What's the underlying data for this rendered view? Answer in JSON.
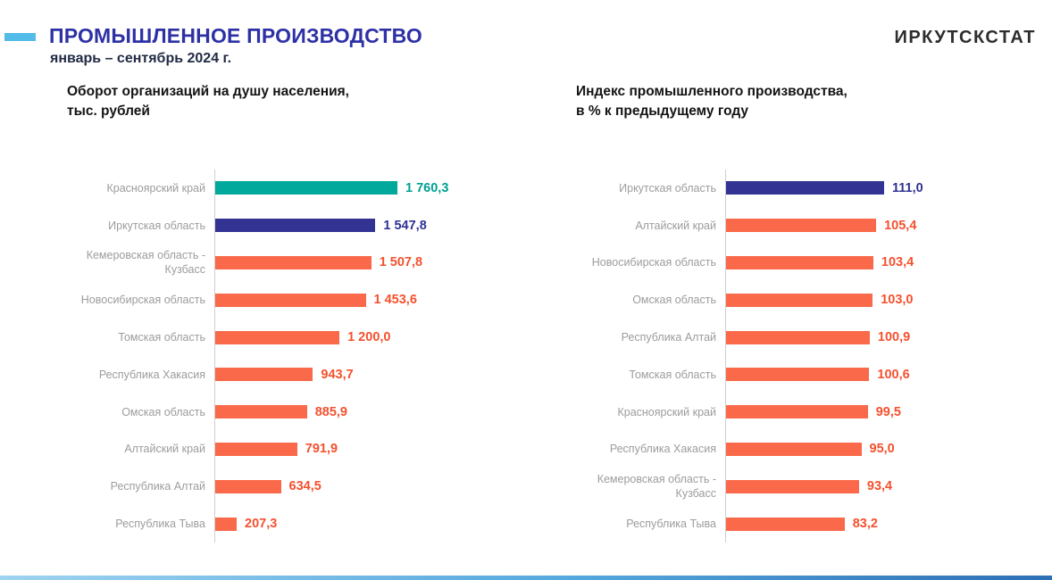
{
  "header": {
    "title": "ПРОМЫШЛЕННОЕ ПРОИЗВОДСТВО",
    "subtitle": "январь – сентябрь 2024 г.",
    "logo": "ИРКУТСКСТАТ"
  },
  "colors": {
    "accent_dash": "#54BCE8",
    "title_blue": "#2E31A5",
    "teal": "#00A99B",
    "navy": "#333394",
    "orange_bar": "#F9694A",
    "orange_text": "#F4512E",
    "label_gray": "#9C9C9C",
    "axis_gray": "#CFCFCF"
  },
  "chart_data": [
    {
      "type": "bar",
      "orientation": "horizontal",
      "title": "Оборот организаций на душу населения,\nтыс. рублей",
      "axis_min": 0,
      "grid": false,
      "legend": false,
      "series": [
        {
          "region": "Красноярский край",
          "value": 1760.3,
          "display": "1 760,3",
          "bar_color": "#00A99B",
          "value_color": "#00A092"
        },
        {
          "region": "Иркутская область",
          "value": 1547.8,
          "display": "1 547,8",
          "bar_color": "#333394",
          "value_color": "#2F3193"
        },
        {
          "region": "Кемеровская область - Кузбасс",
          "value": 1507.8,
          "display": "1 507,8",
          "bar_color": "#F9694A",
          "value_color": "#F4512E"
        },
        {
          "region": "Новосибирская область",
          "value": 1453.6,
          "display": "1 453,6",
          "bar_color": "#F9694A",
          "value_color": "#F4512E"
        },
        {
          "region": "Томская область",
          "value": 1200.0,
          "display": "1 200,0",
          "bar_color": "#F9694A",
          "value_color": "#F4512E"
        },
        {
          "region": "Республика Хакасия",
          "value": 943.7,
          "display": "943,7",
          "bar_color": "#F9694A",
          "value_color": "#F4512E"
        },
        {
          "region": "Омская область",
          "value": 885.9,
          "display": "885,9",
          "bar_color": "#F9694A",
          "value_color": "#F4512E"
        },
        {
          "region": "Алтайский край",
          "value": 791.9,
          "display": "791,9",
          "bar_color": "#F9694A",
          "value_color": "#F4512E"
        },
        {
          "region": "Республика Алтай",
          "value": 634.5,
          "display": "634,5",
          "bar_color": "#F9694A",
          "value_color": "#F4512E"
        },
        {
          "region": "Республика Тыва",
          "value": 207.3,
          "display": "207,3",
          "bar_color": "#F9694A",
          "value_color": "#F4512E"
        }
      ]
    },
    {
      "type": "bar",
      "orientation": "horizontal",
      "title": "Индекс промышленного производства,\nв % к предыдущему году",
      "axis_min": 0,
      "grid": false,
      "legend": false,
      "series": [
        {
          "region": "Иркутская область",
          "value": 111.0,
          "display": "111,0",
          "bar_color": "#333394",
          "value_color": "#2F3193"
        },
        {
          "region": "Алтайский край",
          "value": 105.4,
          "display": "105,4",
          "bar_color": "#F9694A",
          "value_color": "#F4512E"
        },
        {
          "region": "Новосибирская область",
          "value": 103.4,
          "display": "103,4",
          "bar_color": "#F9694A",
          "value_color": "#F4512E"
        },
        {
          "region": "Омская область",
          "value": 103.0,
          "display": "103,0",
          "bar_color": "#F9694A",
          "value_color": "#F4512E"
        },
        {
          "region": "Республика Алтай",
          "value": 100.9,
          "display": "100,9",
          "bar_color": "#F9694A",
          "value_color": "#F4512E"
        },
        {
          "region": "Томская область",
          "value": 100.6,
          "display": "100,6",
          "bar_color": "#F9694A",
          "value_color": "#F4512E"
        },
        {
          "region": "Красноярский край",
          "value": 99.5,
          "display": "99,5",
          "bar_color": "#F9694A",
          "value_color": "#F4512E"
        },
        {
          "region": "Республика Хакасия",
          "value": 95.0,
          "display": "95,0",
          "bar_color": "#F9694A",
          "value_color": "#F4512E"
        },
        {
          "region": "Кемеровская область - Кузбасс",
          "value": 93.4,
          "display": "93,4",
          "bar_color": "#F9694A",
          "value_color": "#F4512E"
        },
        {
          "region": "Республика Тыва",
          "value": 83.2,
          "display": "83,2",
          "bar_color": "#F9694A",
          "value_color": "#F4512E"
        }
      ]
    }
  ]
}
